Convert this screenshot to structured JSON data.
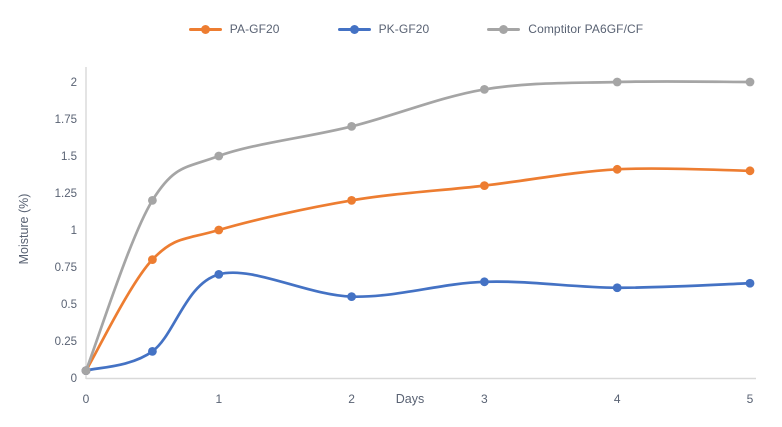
{
  "colors": {
    "background": "#ffffff",
    "text": "#596273",
    "axis_line": "#D9D9D9",
    "series_orange": "#ED7D31",
    "series_blue": "#4472C4",
    "series_gray": "#A5A5A5"
  },
  "chart_data": {
    "type": "line",
    "title": "",
    "xlabel": "Days",
    "ylabel": "Moisture (%)",
    "x": [
      0,
      0.5,
      1,
      2,
      3,
      4,
      5
    ],
    "series": [
      {
        "name": "PA-GF20",
        "color": "#ED7D31",
        "values": [
          0.05,
          0.8,
          1.0,
          1.2,
          1.3,
          1.41,
          1.4
        ]
      },
      {
        "name": "PK-GF20",
        "color": "#4472C4",
        "values": [
          0.05,
          0.18,
          0.7,
          0.55,
          0.65,
          0.61,
          0.64
        ]
      },
      {
        "name": "Comptitor PA6GF/CF",
        "color": "#A5A5A5",
        "values": [
          0.05,
          1.2,
          1.5,
          1.7,
          1.95,
          2.0,
          2.0
        ]
      }
    ],
    "xlim": [
      0,
      5
    ],
    "ylim": [
      0,
      2
    ],
    "x_ticks": [
      0,
      1,
      2,
      3,
      4,
      5
    ],
    "y_ticks": [
      0,
      0.25,
      0.5,
      0.75,
      1,
      1.25,
      1.5,
      1.75,
      2
    ],
    "grid": false,
    "legend_position": "top-center",
    "line_style": "smooth-with-markers"
  }
}
